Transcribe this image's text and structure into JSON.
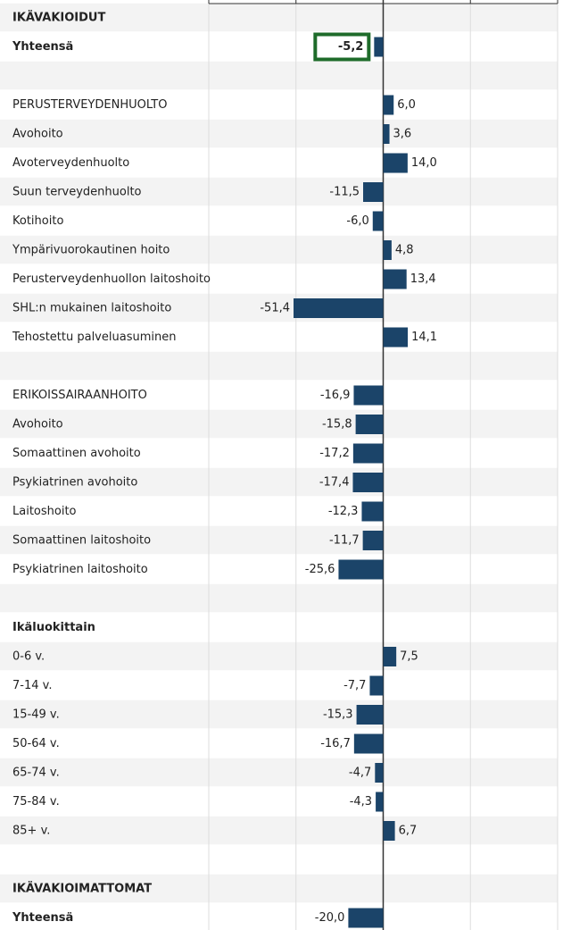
{
  "chart_data": {
    "type": "bar",
    "categories": [
      "IKÄVAKIOIDUT",
      "Yhteensä",
      null,
      "PERUSTERVEYDENHUOLTO",
      "Avohoito",
      "Avoterveydenhuolto",
      "Suun terveydenhuolto",
      "Kotihoito",
      "Ympärivuorokautinen hoito",
      "Perusterveydenhuollon laitoshoito",
      "SHL:n mukainen laitoshoito",
      "Tehostettu palveluasuminen",
      null,
      "ERIKOISSAIRAANHOITO",
      "Avohoito",
      "Somaattinen avohoito",
      "Psykiatrinen avohoito",
      "Laitoshoito",
      "Somaattinen laitoshoito",
      "Psykiatrinen laitoshoito",
      null,
      "Ikäluokittain",
      "0-6 v.",
      "7-14 v.",
      "15-49 v.",
      "50-64 v.",
      "65-74 v.",
      "75-84 v.",
      "85+ v.",
      null,
      "IKÄVAKIOIMATTOMAT",
      "Yhteensä"
    ],
    "values": [
      null,
      -5.2,
      null,
      6.0,
      3.6,
      14.0,
      -11.5,
      -6.0,
      4.8,
      13.4,
      -51.4,
      14.1,
      null,
      -16.9,
      -15.8,
      -17.2,
      -17.4,
      -12.3,
      -11.7,
      -25.6,
      null,
      null,
      7.5,
      -7.7,
      -15.3,
      -16.7,
      -4.7,
      -4.3,
      6.7,
      null,
      null,
      -20.0
    ],
    "value_labels": [
      null,
      "-5,2",
      null,
      "6,0",
      "3,6",
      "14,0",
      "-11,5",
      "-6,0",
      "4,8",
      "13,4",
      "-51,4",
      "14,1",
      null,
      "-16,9",
      "-15,8",
      "-17,2",
      "-17,4",
      "-12,3",
      "-11,7",
      "-25,6",
      null,
      null,
      "7,5",
      "-7,7",
      "-15,3",
      "-16,7",
      "-4,7",
      "-4,3",
      "6,7",
      null,
      null,
      "-20,0"
    ],
    "label_styles": [
      "bold",
      "bold",
      "plain",
      "header",
      "group",
      "plain",
      "plain",
      "plain",
      "group",
      "plain",
      "plain",
      "plain",
      "plain",
      "header",
      "group",
      "plain",
      "plain",
      "group",
      "plain",
      "plain",
      "plain",
      "bold",
      "plain",
      "plain",
      "plain",
      "plain",
      "plain",
      "plain",
      "plain",
      "plain",
      "bold",
      "bold"
    ],
    "highlight_index": 1,
    "color": "#1b4469",
    "xlim": [
      -100,
      100
    ],
    "xticks": [
      -100,
      -50,
      0,
      50,
      100
    ],
    "grid": true
  }
}
